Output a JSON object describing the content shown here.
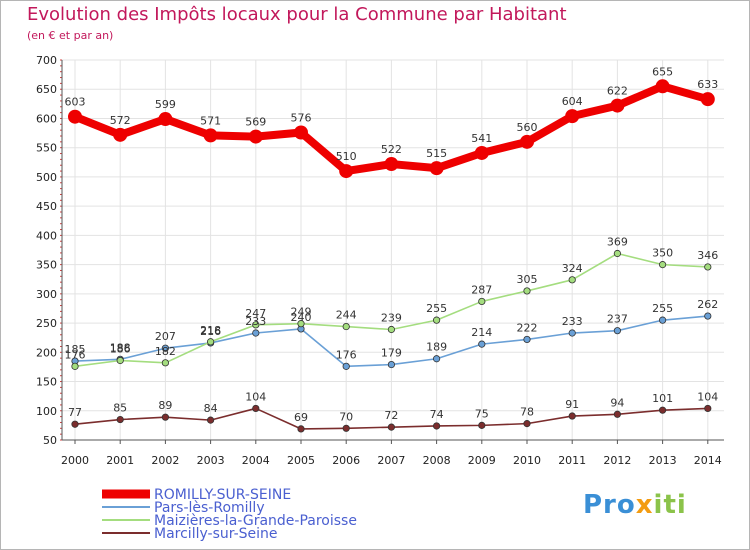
{
  "title": "Evolution des Impôts locaux pour la Commune par Habitant",
  "subtitle": "(en € et par an)",
  "logo": {
    "text_a": "Pro",
    "text_b": "x",
    "text_c": "iti"
  },
  "chart_data": {
    "type": "line",
    "title": "Evolution des Impôts locaux pour la Commune par Habitant",
    "ylabel": "(en € et par an)",
    "x": [
      2000,
      2001,
      2002,
      2003,
      2004,
      2005,
      2006,
      2007,
      2008,
      2009,
      2010,
      2011,
      2012,
      2013,
      2014
    ],
    "ylim": [
      50,
      700
    ],
    "yticks": [
      50,
      100,
      150,
      200,
      250,
      300,
      350,
      400,
      450,
      500,
      550,
      600,
      650,
      700
    ],
    "grid": true,
    "legend_position": "bottom-left",
    "series": [
      {
        "name": "ROMILLY-SUR-SEINE",
        "color": "#ee0000",
        "thick": true,
        "values": [
          603,
          572,
          599,
          571,
          569,
          576,
          510,
          522,
          515,
          541,
          560,
          604,
          622,
          655,
          633
        ]
      },
      {
        "name": "Pars-lès-Romilly",
        "color": "#6aa0d6",
        "thick": false,
        "values": [
          185,
          188,
          207,
          216,
          233,
          240,
          176,
          179,
          189,
          214,
          222,
          233,
          237,
          255,
          262
        ]
      },
      {
        "name": "Maizières-la-Grande-Paroisse",
        "color": "#a4dd7f",
        "thick": false,
        "values": [
          176,
          186,
          182,
          218,
          247,
          249,
          244,
          239,
          255,
          287,
          305,
          324,
          369,
          350,
          346
        ]
      },
      {
        "name": "Marcilly-sur-Seine",
        "color": "#7b2d2d",
        "thick": false,
        "values": [
          77,
          85,
          89,
          84,
          104,
          69,
          70,
          72,
          74,
          75,
          78,
          91,
          94,
          101,
          104
        ]
      }
    ]
  }
}
